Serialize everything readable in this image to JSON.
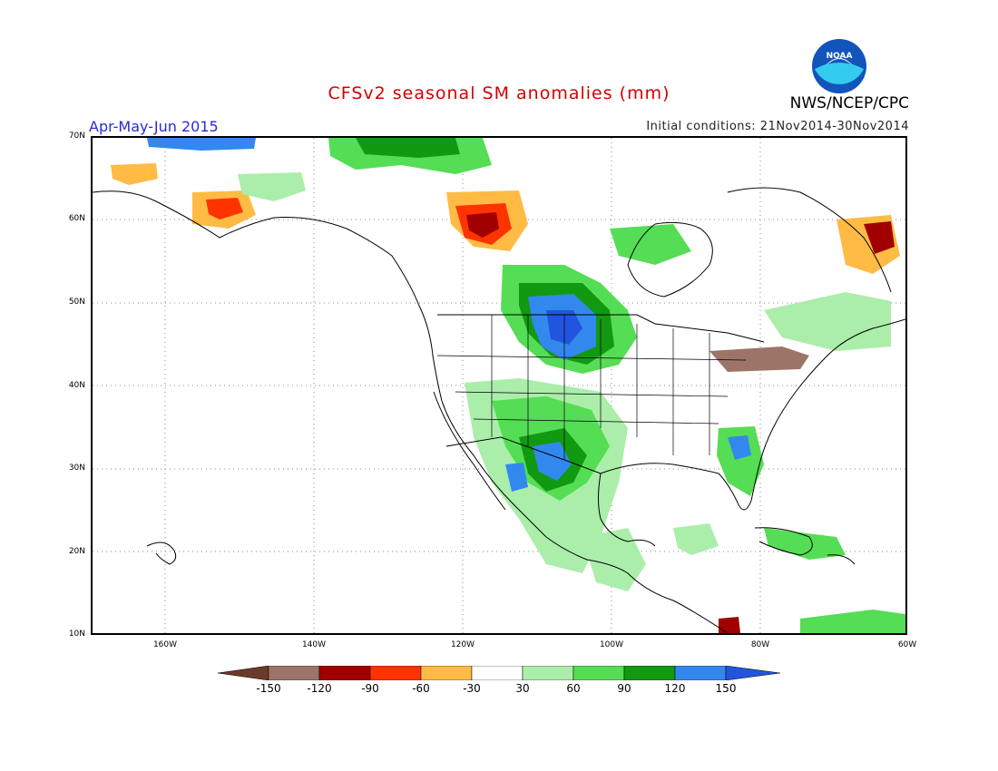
{
  "title": "CFSv2 seasonal SM anomalies (mm)",
  "agency": "NWS/NCEP/CPC",
  "logo_text": "NOAA",
  "period": "Apr-May-Jun 2015",
  "initial_conditions": "Initial conditions: 21Nov2014-30Nov2014",
  "lat_labels": [
    "70N",
    "60N",
    "50N",
    "40N",
    "30N",
    "20N",
    "10N"
  ],
  "lon_labels": [
    "160W",
    "140W",
    "120W",
    "100W",
    "80W",
    "60W"
  ],
  "colorbar": {
    "labels": [
      "-150",
      "-120",
      "-90",
      "-60",
      "-30",
      "30",
      "60",
      "90",
      "120",
      "150"
    ],
    "colors": [
      "#6b3a2a",
      "#9c7468",
      "#a00000",
      "#ff3300",
      "#ffbb44",
      "#ffffff",
      "#aaeeaa",
      "#55dd55",
      "#119911",
      "#3388ee",
      "#2255dd"
    ]
  },
  "colors": {
    "title": "#d40000",
    "period": "#2a2ad8",
    "noaa_blue": "#1155bb",
    "noaa_cyan": "#33ccee"
  }
}
